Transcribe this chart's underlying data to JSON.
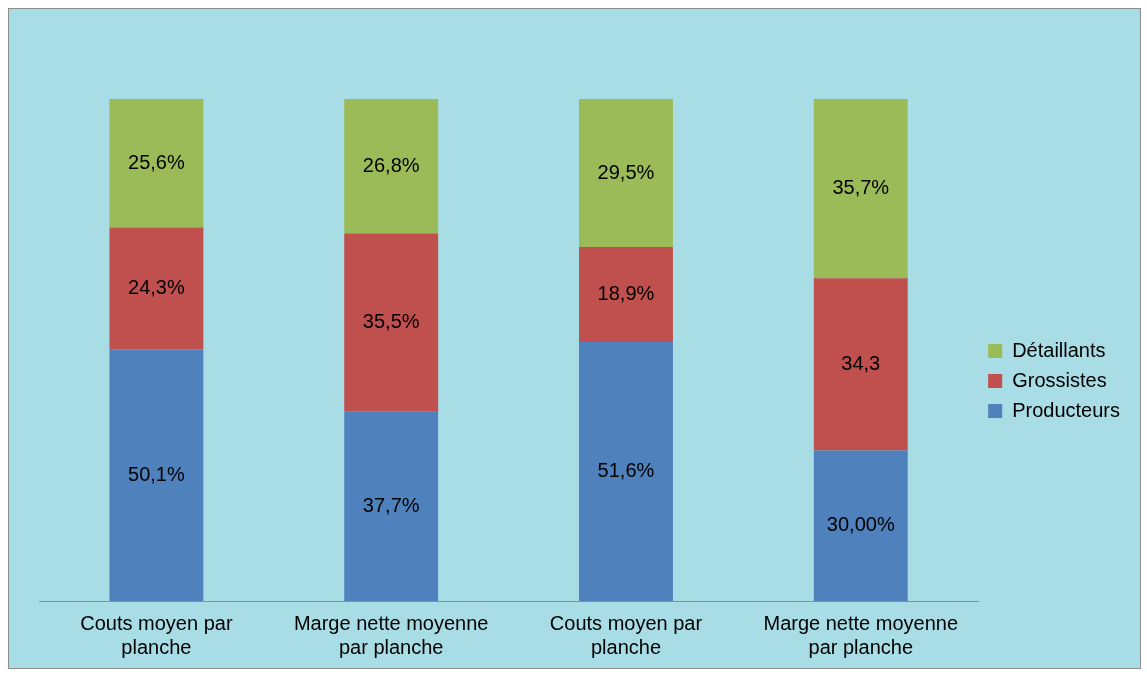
{
  "chart_data": {
    "type": "bar",
    "stacked": true,
    "legend": "right",
    "grid": false,
    "categories": [
      "Couts moyen par planche",
      "Marge nette moyenne par planche",
      "Couts moyen par planche",
      "Marge nette moyenne par planche"
    ],
    "series": [
      {
        "name": "Producteurs",
        "color": "#4f81bd",
        "values": [
          50.1,
          37.7,
          51.6,
          30.0
        ],
        "value_labels": [
          "50,1%",
          "37,7%",
          "51,6%",
          "30,00%"
        ]
      },
      {
        "name": "Grossistes",
        "color": "#c0504d",
        "values": [
          24.3,
          35.5,
          18.9,
          34.3
        ],
        "value_labels": [
          "24,3%",
          "35,5%",
          "18,9%",
          "34,3"
        ]
      },
      {
        "name": "Détaillants",
        "color": "#9bbb59",
        "values": [
          25.6,
          26.8,
          29.5,
          35.7
        ],
        "value_labels": [
          "25,6%",
          "26,8%",
          "29,5%",
          "35,7%"
        ]
      }
    ]
  }
}
